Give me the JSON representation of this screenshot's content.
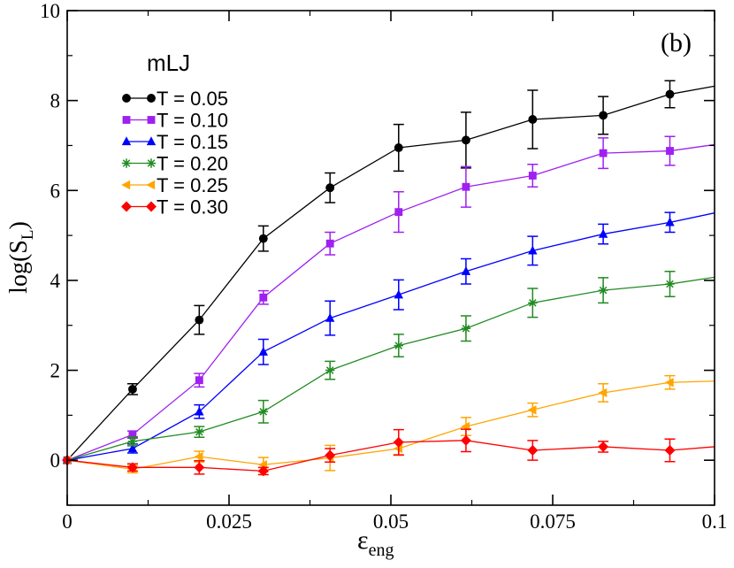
{
  "chart_data": {
    "type": "line",
    "panel_label": "(b)",
    "title": "mLJ",
    "xlabel": "ε",
    "xlabel_sub": "eng",
    "ylabel": "log(S",
    "ylabel_sub": "L",
    "ylabel_close": ")",
    "xlim": [
      0,
      0.1
    ],
    "ylim": [
      -1,
      10
    ],
    "xticks": [
      {
        "value": 0,
        "label": "0"
      },
      {
        "value": 0.025,
        "label": "0.025"
      },
      {
        "value": 0.05,
        "label": "0.05"
      },
      {
        "value": 0.075,
        "label": "0.075"
      },
      {
        "value": 0.1,
        "label": "0.1"
      }
    ],
    "yticks": [
      {
        "value": 0,
        "label": "0"
      },
      {
        "value": 2,
        "label": "2"
      },
      {
        "value": 4,
        "label": "4"
      },
      {
        "value": 6,
        "label": "6"
      },
      {
        "value": 8,
        "label": "8"
      },
      {
        "value": 10,
        "label": "10"
      }
    ],
    "legend_position": "top-left",
    "series": [
      {
        "name": "T = 0.05",
        "color": "#000000",
        "marker": "circle",
        "x": [
          0,
          0.0101,
          0.0204,
          0.0303,
          0.0406,
          0.0512,
          0.0616,
          0.0719,
          0.0828,
          0.0931,
          0.1
        ],
        "y": [
          0,
          1.58,
          3.12,
          4.93,
          6.06,
          6.95,
          7.12,
          7.58,
          7.67,
          8.14,
          8.32
        ],
        "err": [
          0,
          0.12,
          0.32,
          0.28,
          0.33,
          0.52,
          0.62,
          0.65,
          0.42,
          0.3,
          null
        ]
      },
      {
        "name": "T = 0.10",
        "color": "#9f20f0",
        "marker": "square",
        "x": [
          0,
          0.0101,
          0.0204,
          0.0303,
          0.0406,
          0.0512,
          0.0616,
          0.0719,
          0.0828,
          0.0931,
          0.1
        ],
        "y": [
          0,
          0.57,
          1.78,
          3.62,
          4.82,
          5.52,
          6.08,
          6.33,
          6.83,
          6.88,
          7.02
        ],
        "err": [
          0,
          0.08,
          0.15,
          0.15,
          0.25,
          0.45,
          0.45,
          0.25,
          0.34,
          0.32,
          null
        ]
      },
      {
        "name": "T = 0.15",
        "color": "#0000ff",
        "marker": "triangle-up",
        "x": [
          0,
          0.0101,
          0.0204,
          0.0303,
          0.0406,
          0.0512,
          0.0616,
          0.0719,
          0.0828,
          0.0931,
          0.1
        ],
        "y": [
          0,
          0.26,
          1.08,
          2.41,
          3.16,
          3.68,
          4.2,
          4.66,
          5.03,
          5.29,
          5.5
        ],
        "err": [
          0,
          0.1,
          0.15,
          0.28,
          0.38,
          0.33,
          0.28,
          0.32,
          0.22,
          0.22,
          null
        ]
      },
      {
        "name": "T = 0.20",
        "color": "#228b22",
        "marker": "star",
        "x": [
          0,
          0.0101,
          0.0204,
          0.0303,
          0.0406,
          0.0512,
          0.0616,
          0.0719,
          0.0828,
          0.0931,
          0.1
        ],
        "y": [
          0,
          0.42,
          0.63,
          1.08,
          2.0,
          2.55,
          2.93,
          3.5,
          3.78,
          3.92,
          4.07
        ],
        "err": [
          0,
          0.1,
          0.12,
          0.25,
          0.2,
          0.25,
          0.28,
          0.32,
          0.28,
          0.28,
          null
        ]
      },
      {
        "name": "T = 0.25",
        "color": "#ffa500",
        "marker": "triangle-left",
        "x": [
          0,
          0.0101,
          0.0204,
          0.0303,
          0.0406,
          0.0512,
          0.0616,
          0.0719,
          0.0828,
          0.0931,
          0.1
        ],
        "y": [
          0,
          -0.2,
          0.08,
          -0.1,
          0.05,
          0.26,
          0.75,
          1.12,
          1.5,
          1.73,
          1.76
        ],
        "err": [
          0,
          0.08,
          0.12,
          0.16,
          0.28,
          0.15,
          0.2,
          0.15,
          0.2,
          0.15,
          null
        ]
      },
      {
        "name": "T = 0.30",
        "color": "#ff0000",
        "marker": "diamond",
        "x": [
          0,
          0.0101,
          0.0204,
          0.0303,
          0.0406,
          0.0512,
          0.0616,
          0.0719,
          0.0828,
          0.0931,
          0.1
        ],
        "y": [
          0,
          -0.16,
          -0.16,
          -0.24,
          0.11,
          0.4,
          0.44,
          0.22,
          0.3,
          0.22,
          0.3
        ],
        "err": [
          0,
          0.08,
          0.15,
          0.08,
          0.15,
          0.28,
          0.25,
          0.22,
          0.12,
          0.25,
          null
        ]
      }
    ]
  }
}
